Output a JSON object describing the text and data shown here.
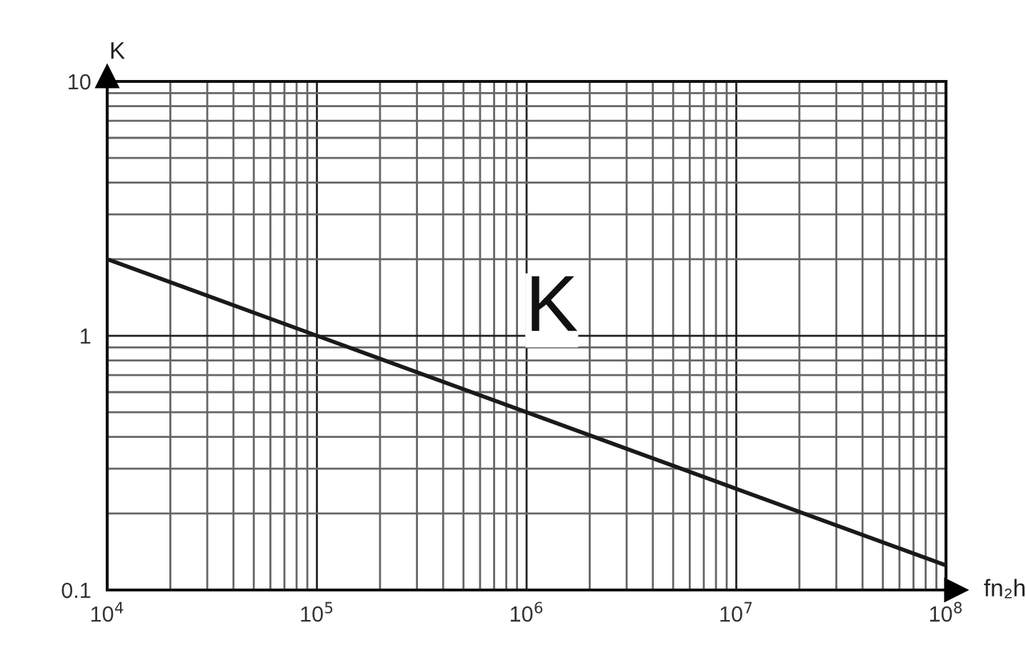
{
  "chart_data": {
    "type": "line",
    "xlabel": "fn₂h",
    "ylabel": "K",
    "annotations": [
      "K"
    ],
    "x": [
      10000,
      100000,
      1000000,
      10000000,
      100000000
    ],
    "series": [
      {
        "color": "#1a1a1a",
        "values": [
          2,
          1,
          0.5,
          0.25,
          0.125
        ]
      }
    ],
    "log": "xy",
    "xlim": [
      10000,
      100000000
    ],
    "xticks": [
      {
        "value": 10000,
        "label": "10$^{4}$"
      },
      {
        "value": 100000,
        "label": "10$^{5}$"
      },
      {
        "value": 1000000,
        "label": "10$^{6}$"
      },
      {
        "value": 10000000,
        "label": "10$^{7}$"
      },
      {
        "value": 100000000,
        "label": "10$^{8}$"
      }
    ],
    "ylim": [
      0.1,
      10
    ],
    "yticks": [
      0.1,
      1,
      10
    ],
    "grid": true,
    "marker": "none",
    "line_style": "solid"
  }
}
